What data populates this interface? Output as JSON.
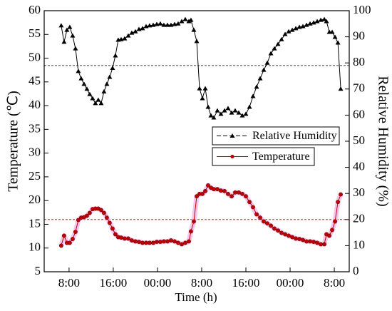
{
  "chart_data": {
    "type": "line",
    "xlabel": "Time (h)",
    "ylabel": "Temperature (℃)",
    "y2label": "Relative Humidity (%)",
    "x": [
      -1.42,
      -0.9,
      -0.39,
      0.13,
      0.65,
      1.16,
      1.68,
      2.19,
      2.71,
      3.23,
      3.74,
      4.26,
      4.77,
      5.29,
      5.81,
      6.32,
      6.84,
      7.35,
      7.87,
      8.39,
      8.9,
      9.42,
      10.06,
      10.71,
      11.35,
      12.0,
      12.65,
      13.29,
      13.94,
      14.58,
      15.23,
      15.87,
      16.52,
      17.16,
      17.81,
      18.45,
      19.1,
      19.74,
      20.39,
      21.03,
      21.68,
      22.06,
      22.58,
      23.1,
      23.61,
      24.13,
      24.65,
      25.16,
      25.68,
      26.19,
      26.84,
      27.48,
      28.13,
      28.77,
      29.42,
      30.06,
      30.71,
      31.35,
      32.0,
      32.65,
      33.29,
      33.94,
      34.58,
      35.23,
      35.87,
      36.52,
      37.16,
      37.81,
      38.45,
      39.1,
      39.74,
      40.39,
      41.03,
      41.68,
      42.32,
      42.97,
      43.61,
      44.26,
      44.9,
      45.55,
      46.19,
      46.58,
      47.1,
      47.61,
      48.13,
      48.65,
      49.16
    ],
    "series": [
      {
        "name": "Relative Humidity",
        "color": "#000000",
        "marker": "triangle",
        "axis": "y2",
        "values": [
          94.3,
          88,
          92.6,
          93.7,
          90.4,
          85.5,
          76.8,
          74,
          71.9,
          70,
          68,
          66.4,
          64.5,
          65.8,
          64.5,
          69,
          71.9,
          74.6,
          78,
          82.8,
          88.8,
          89,
          89.3,
          90.4,
          91.5,
          92,
          92.9,
          93.2,
          94,
          94.3,
          94.5,
          94.8,
          95,
          94.5,
          94.5,
          94.5,
          94.8,
          95,
          95.9,
          96.7,
          95.9,
          96.4,
          92.6,
          88.3,
          70.2,
          66.4,
          70.2,
          63.1,
          59.8,
          59,
          61.7,
          60.4,
          61.7,
          62.6,
          60.9,
          61.7,
          60.9,
          59.8,
          60.4,
          63.1,
          67.2,
          70.8,
          74,
          77.3,
          80,
          83.6,
          85.5,
          87.2,
          89,
          91,
          92,
          92.6,
          93.2,
          93.7,
          94,
          94.5,
          95,
          95.4,
          95.9,
          96.4,
          96.7,
          95.9,
          91.8,
          91.8,
          89.9,
          87.7,
          70
        ]
      },
      {
        "name": "Temperature",
        "color": "#c00000",
        "marker": "circle",
        "axis": "y",
        "values": [
          10.5,
          12.6,
          11.1,
          11.1,
          11.9,
          13.4,
          15.9,
          16.4,
          16.5,
          16.8,
          17.4,
          18.2,
          18.3,
          18.3,
          18.0,
          17.4,
          16.4,
          15.3,
          14.1,
          12.9,
          12.3,
          12.2,
          12.0,
          12.0,
          11.6,
          11.4,
          11.3,
          11.1,
          11.1,
          11.1,
          11.1,
          11.3,
          11.3,
          11.4,
          11.4,
          11.6,
          11.4,
          11.1,
          10.8,
          11.1,
          11.4,
          13.5,
          15.6,
          20.9,
          21.4,
          21.4,
          22.0,
          23.2,
          22.7,
          22.4,
          22.4,
          22.1,
          22.0,
          21.4,
          20.9,
          21.7,
          21.7,
          21.4,
          20.9,
          19.7,
          18.6,
          17.1,
          16.4,
          15.6,
          15.2,
          14.7,
          14.1,
          13.7,
          13.2,
          12.9,
          12.6,
          12.3,
          12.0,
          11.9,
          11.7,
          11.4,
          11.4,
          11.3,
          11.1,
          10.8,
          10.8,
          12.9,
          12.6,
          13.8,
          15.6,
          19.7,
          21.3
        ]
      }
    ],
    "reference_lines": [
      {
        "value": 79,
        "axis": "y2",
        "color": "#000000"
      },
      {
        "value": 16,
        "axis": "y",
        "color": "#c00000"
      }
    ],
    "xlim": [
      -4.5,
      50.7
    ],
    "xticks": [
      {
        "value": 0,
        "label": "8:00"
      },
      {
        "value": 8,
        "label": "16:00"
      },
      {
        "value": 16,
        "label": "00:00"
      },
      {
        "value": 24,
        "label": "8:00"
      },
      {
        "value": 32,
        "label": "16:00"
      },
      {
        "value": 40,
        "label": "00:00"
      },
      {
        "value": 48,
        "label": "8:00"
      }
    ],
    "ylim": [
      5,
      60
    ],
    "yticks": [
      5,
      10,
      15,
      20,
      25,
      30,
      35,
      40,
      45,
      50,
      55,
      60
    ],
    "y2lim": [
      0,
      100
    ],
    "y2ticks": [
      0,
      10,
      20,
      30,
      40,
      50,
      60,
      70,
      80,
      90,
      100
    ],
    "legend": "right"
  }
}
